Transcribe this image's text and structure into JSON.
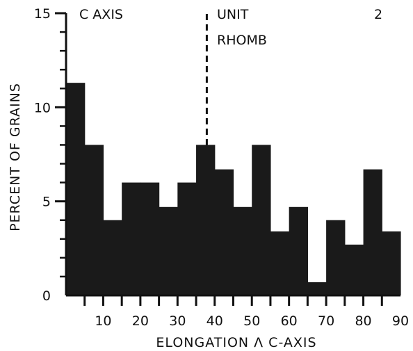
{
  "chart_data": {
    "type": "bar",
    "title": "",
    "xlabel": "ELONGATION Λ C-AXIS",
    "ylabel": "PERCENT OF GRAINS",
    "x_bin_width": 5,
    "xlim": [
      0,
      90
    ],
    "ylim": [
      0,
      15
    ],
    "x_ticks": [
      10,
      20,
      30,
      40,
      50,
      60,
      70,
      80,
      90
    ],
    "y_ticks": [
      0,
      5,
      10,
      15
    ],
    "bin_starts": [
      0,
      5,
      10,
      15,
      20,
      25,
      30,
      35,
      40,
      45,
      50,
      55,
      60,
      65,
      70,
      75,
      80,
      85
    ],
    "values": [
      11.3,
      8.0,
      4.0,
      6.0,
      6.0,
      4.7,
      6.0,
      8.0,
      6.7,
      4.7,
      8.0,
      3.4,
      4.7,
      0.7,
      4.0,
      2.7,
      6.7,
      3.4
    ],
    "annotations": {
      "c_axis": "C AXIS",
      "unit": "UNIT",
      "rhomb": "RHOMB",
      "number": "2"
    },
    "rhomb_line_x": 37.5,
    "grid": false,
    "bar_color": "#1a1a1a"
  }
}
